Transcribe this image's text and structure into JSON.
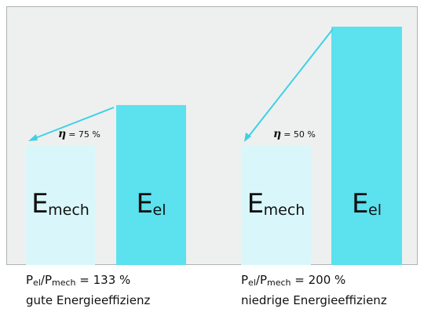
{
  "colors": {
    "e_mech": "#d9f7fa",
    "e_el": "#5ce1ee",
    "arrow": "#3fd0e6",
    "panel": "#eef0f0"
  },
  "groups": [
    {
      "mech": {
        "main": "E",
        "sub": "mech"
      },
      "el": {
        "main": "E",
        "sub": "el"
      },
      "eta": {
        "symbol": "η",
        "text": "= 75 %"
      },
      "caption": {
        "line1": {
          "p1": "P",
          "s1": "el",
          "slash": "/",
          "p2": "P",
          "s2": "mech",
          "rest": " = 133 %"
        },
        "line2": "gute Energieeffizienz"
      }
    },
    {
      "mech": {
        "main": "E",
        "sub": "mech"
      },
      "el": {
        "main": "E",
        "sub": "el"
      },
      "eta": {
        "symbol": "η",
        "text": "= 50 %"
      },
      "caption": {
        "line1": {
          "p1": "P",
          "s1": "el",
          "slash": "/",
          "p2": "P",
          "s2": "mech",
          "rest": " = 200 %"
        },
        "line2": "niedrige Energieeffizienz"
      }
    }
  ]
}
